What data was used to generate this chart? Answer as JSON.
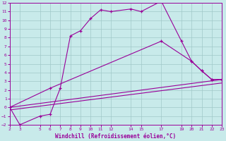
{
  "xlabel": "Windchill (Refroidissement éolien,°C)",
  "background_color": "#c8eaea",
  "grid_color": "#a0c8c8",
  "line_color": "#990099",
  "line1_x": [
    2,
    3,
    5,
    6,
    7,
    8,
    9,
    10,
    11,
    12,
    14,
    15,
    17,
    19,
    20,
    21,
    22,
    23
  ],
  "line1_y": [
    0,
    -2,
    -1,
    -0.8,
    2.2,
    8.2,
    8.8,
    10.2,
    11.2,
    11.0,
    11.3,
    11.0,
    12.2,
    7.6,
    5.3,
    4.2,
    3.2,
    3.2
  ],
  "line2_x": [
    2,
    6,
    17,
    20,
    21,
    22,
    23
  ],
  "line2_y": [
    0,
    2.2,
    7.6,
    5.3,
    4.2,
    3.2,
    3.2
  ],
  "line3_x": [
    2,
    23
  ],
  "line3_y": [
    0.0,
    3.2
  ],
  "line4_x": [
    2,
    23
  ],
  "line4_y": [
    -0.3,
    2.8
  ],
  "xlim": [
    2,
    23
  ],
  "ylim": [
    -2,
    12
  ],
  "xticks": [
    2,
    3,
    5,
    6,
    7,
    8,
    9,
    10,
    11,
    12,
    14,
    15,
    17,
    19,
    20,
    21,
    22,
    23
  ],
  "yticks": [
    -2,
    -1,
    0,
    1,
    2,
    3,
    4,
    5,
    6,
    7,
    8,
    9,
    10,
    11,
    12
  ]
}
